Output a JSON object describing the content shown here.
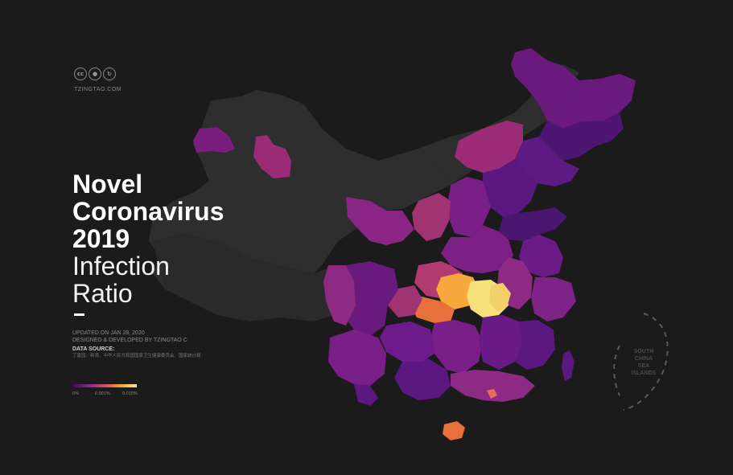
{
  "brand": {
    "license_icons": [
      "cc",
      "by-person",
      "sa"
    ],
    "license_names": [
      "creative-commons-icon",
      "attribution-icon",
      "share-alike-icon"
    ],
    "site": "TZINGTAO.COM"
  },
  "title": {
    "line1": "Novel",
    "line2": "Coronavirus",
    "line3": "2019",
    "line4": "Infection",
    "line5": "Ratio"
  },
  "meta": {
    "updated": "UPDATED ON JAN 28, 2020",
    "designed": "DESIGNED & DEVELOPED BY TZINGTAO C",
    "source_title": "DATA SOURCE:",
    "source_text": "丁香园、新浪、中华人民共和国国家卫生健康委员会、国家统计局"
  },
  "legend": {
    "labels": [
      "0%",
      "0.001%",
      "0.015%"
    ],
    "colors": [
      "#3a0c5e",
      "#7a1d8a",
      "#b63b79",
      "#e86a3c",
      "#f8b43a",
      "#f8ee8c"
    ]
  },
  "map": {
    "inset_label": [
      "SOUTH",
      "CHINA",
      "SEA",
      "ISLANDS"
    ],
    "colors": {
      "background": "#1b1b1b",
      "no_data": "#2e2e2e",
      "low": "#4a1670",
      "low_mid": "#6d1a8a",
      "mid": "#8c2a84",
      "mid_high": "#b13a70",
      "high": "#e8703a",
      "very_high": "#f7a83c",
      "peak": "#f6e27a"
    }
  }
}
